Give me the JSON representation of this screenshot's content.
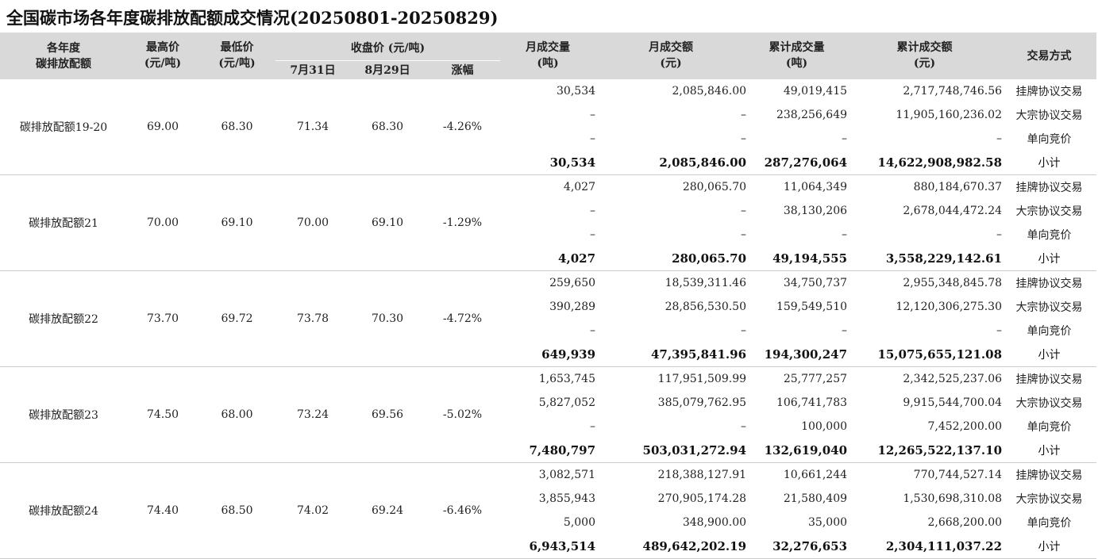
{
  "title": "全国碳市场各年度碳排放配额成交情况(20250801-20250829)",
  "headers": {
    "allowance": [
      "各年度",
      "碳排放配额"
    ],
    "high": [
      "最高价",
      "(元/吨)"
    ],
    "low": [
      "最低价",
      "(元/吨)"
    ],
    "closing": "收盘价 (元/吨)",
    "close_jul31": "7月31日",
    "close_aug29": "8月29日",
    "change": "涨幅",
    "monthly_vol": [
      "月成交量",
      "(吨)"
    ],
    "monthly_amt": [
      "月成交额",
      "(元)"
    ],
    "cum_vol": [
      "累计成交量",
      "(吨)"
    ],
    "cum_amt": [
      "累计成交额",
      "(元)"
    ],
    "method": "交易方式"
  },
  "groups": [
    {
      "name": "碳排放配额19-20",
      "high": "69.00",
      "low": "68.30",
      "close_jul31": "71.34",
      "close_aug29": "68.30",
      "change": "-4.26%",
      "rows": [
        {
          "monthly_vol": "30,534",
          "monthly_amt": "2,085,846.00",
          "cum_vol": "49,019,415",
          "cum_amt": "2,717,748,746.56",
          "method": "挂牌协议交易"
        },
        {
          "monthly_vol": "–",
          "monthly_amt": "–",
          "cum_vol": "238,256,649",
          "cum_amt": "11,905,160,236.02",
          "method": "大宗协议交易"
        },
        {
          "monthly_vol": "–",
          "monthly_amt": "–",
          "cum_vol": "–",
          "cum_amt": "–",
          "method": "单向竞价"
        },
        {
          "monthly_vol": "30,534",
          "monthly_amt": "2,085,846.00",
          "cum_vol": "287,276,064",
          "cum_amt": "14,622,908,982.58",
          "method": "小计"
        }
      ]
    },
    {
      "name": "碳排放配额21",
      "high": "70.00",
      "low": "69.10",
      "close_jul31": "70.00",
      "close_aug29": "69.10",
      "change": "-1.29%",
      "rows": [
        {
          "monthly_vol": "4,027",
          "monthly_amt": "280,065.70",
          "cum_vol": "11,064,349",
          "cum_amt": "880,184,670.37",
          "method": "挂牌协议交易"
        },
        {
          "monthly_vol": "–",
          "monthly_amt": "–",
          "cum_vol": "38,130,206",
          "cum_amt": "2,678,044,472.24",
          "method": "大宗协议交易"
        },
        {
          "monthly_vol": "–",
          "monthly_amt": "–",
          "cum_vol": "–",
          "cum_amt": "–",
          "method": "单向竞价"
        },
        {
          "monthly_vol": "4,027",
          "monthly_amt": "280,065.70",
          "cum_vol": "49,194,555",
          "cum_amt": "3,558,229,142.61",
          "method": "小计"
        }
      ]
    },
    {
      "name": "碳排放配额22",
      "high": "73.70",
      "low": "69.72",
      "close_jul31": "73.78",
      "close_aug29": "70.30",
      "change": "-4.72%",
      "rows": [
        {
          "monthly_vol": "259,650",
          "monthly_amt": "18,539,311.46",
          "cum_vol": "34,750,737",
          "cum_amt": "2,955,348,845.78",
          "method": "挂牌协议交易"
        },
        {
          "monthly_vol": "390,289",
          "monthly_amt": "28,856,530.50",
          "cum_vol": "159,549,510",
          "cum_amt": "12,120,306,275.30",
          "method": "大宗协议交易"
        },
        {
          "monthly_vol": "–",
          "monthly_amt": "–",
          "cum_vol": "–",
          "cum_amt": "–",
          "method": "单向竞价"
        },
        {
          "monthly_vol": "649,939",
          "monthly_amt": "47,395,841.96",
          "cum_vol": "194,300,247",
          "cum_amt": "15,075,655,121.08",
          "method": "小计"
        }
      ]
    },
    {
      "name": "碳排放配额23",
      "high": "74.50",
      "low": "68.00",
      "close_jul31": "73.24",
      "close_aug29": "69.56",
      "change": "-5.02%",
      "rows": [
        {
          "monthly_vol": "1,653,745",
          "monthly_amt": "117,951,509.99",
          "cum_vol": "25,777,257",
          "cum_amt": "2,342,525,237.06",
          "method": "挂牌协议交易"
        },
        {
          "monthly_vol": "5,827,052",
          "monthly_amt": "385,079,762.95",
          "cum_vol": "106,741,783",
          "cum_amt": "9,915,544,700.04",
          "method": "大宗协议交易"
        },
        {
          "monthly_vol": "–",
          "monthly_amt": "–",
          "cum_vol": "100,000",
          "cum_amt": "7,452,200.00",
          "method": "单向竞价"
        },
        {
          "monthly_vol": "7,480,797",
          "monthly_amt": "503,031,272.94",
          "cum_vol": "132,619,040",
          "cum_amt": "12,265,522,137.10",
          "method": "小计"
        }
      ]
    },
    {
      "name": "碳排放配额24",
      "high": "74.40",
      "low": "68.50",
      "close_jul31": "74.02",
      "close_aug29": "69.24",
      "change": "-6.46%",
      "rows": [
        {
          "monthly_vol": "3,082,571",
          "monthly_amt": "218,388,127.91",
          "cum_vol": "10,661,244",
          "cum_amt": "770,744,527.14",
          "method": "挂牌协议交易"
        },
        {
          "monthly_vol": "3,855,943",
          "monthly_amt": "270,905,174.28",
          "cum_vol": "21,580,409",
          "cum_amt": "1,530,698,310.08",
          "method": "大宗协议交易"
        },
        {
          "monthly_vol": "5,000",
          "monthly_amt": "348,900.00",
          "cum_vol": "35,000",
          "cum_amt": "2,668,200.00",
          "method": "单向竞价"
        },
        {
          "monthly_vol": "6,943,514",
          "monthly_amt": "489,642,202.19",
          "cum_vol": "32,276,653",
          "cum_amt": "2,304,111,037.22",
          "method": "小计"
        }
      ]
    }
  ]
}
